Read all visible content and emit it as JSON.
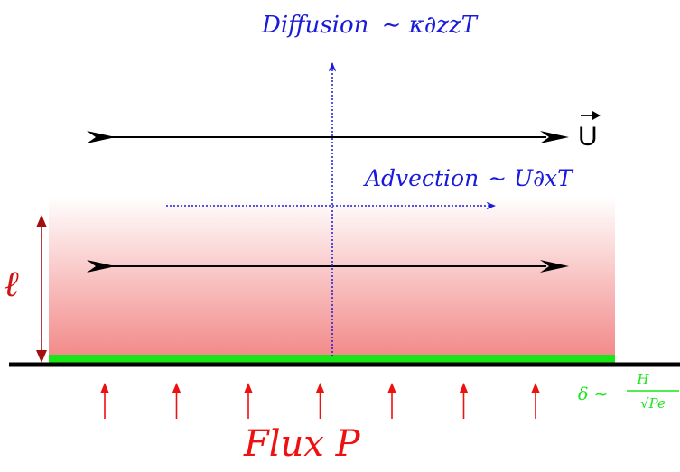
{
  "diagram": {
    "diffusion": {
      "label": "Diffusion",
      "formula": "∼ κ∂zzT",
      "color": "#1a1adb"
    },
    "advection": {
      "label": "Advection",
      "formula": "∼ U∂xT",
      "color": "#1a1adb"
    },
    "velocity": {
      "label": "U",
      "color": "#000000"
    },
    "layer": {
      "thickness_label": "ℓ",
      "color": "#d21414",
      "gradient_color": "#f38a8a"
    },
    "boundary_layer": {
      "label": "δ ∼",
      "fraction_num": "H",
      "fraction_den": "√Pe",
      "color": "#19e619"
    },
    "flux": {
      "label": "Flux P",
      "color": "#ee1111",
      "arrow_count": 7
    }
  }
}
